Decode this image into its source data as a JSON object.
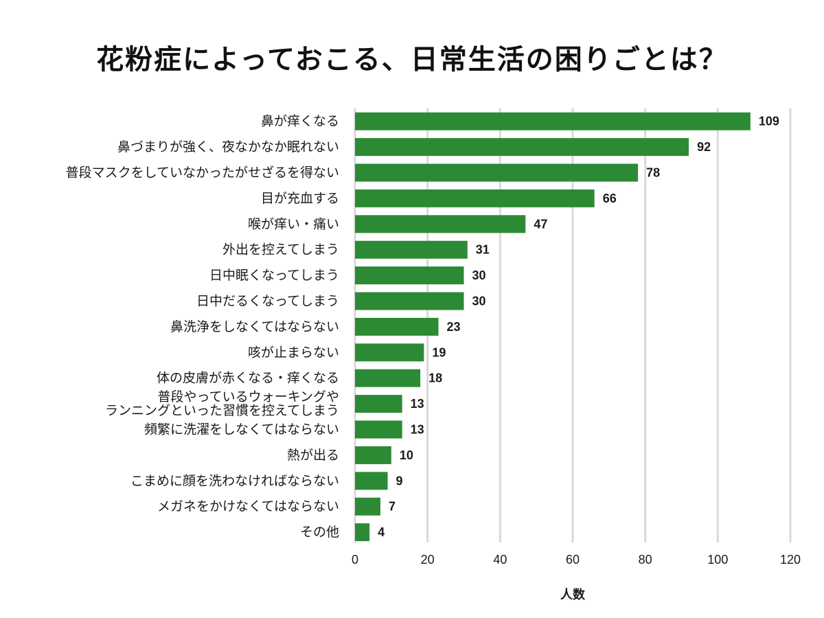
{
  "chart_data": {
    "type": "bar",
    "orientation": "horizontal",
    "title": "花粉症によっておこる、日常生活の困りごとは？",
    "xlabel": "人数",
    "ylabel": "",
    "xlim": [
      0,
      120
    ],
    "xticks": [
      0,
      20,
      40,
      60,
      80,
      100,
      120
    ],
    "grid": true,
    "bar_color": "#2d8a34",
    "categories": [
      "鼻が痒くなる",
      "鼻づまりが強く、夜なかなか眠れない",
      "普段マスクをしていなかったがせざるを得ない",
      "目が充血する",
      "喉が痒い・痛い",
      "外出を控えてしまう",
      "日中眠くなってしまう",
      "日中だるくなってしまう",
      "鼻洗浄をしなくてはならない",
      "咳が止まらない",
      "体の皮膚が赤くなる・痒くなる",
      "普段やっているウォーキングや\nランニングといった習慣を控えてしまう",
      "頻繁に洗濯をしなくてはならない",
      "熱が出る",
      "こまめに顔を洗わなければならない",
      "メガネをかけなくてはならない",
      "その他"
    ],
    "values": [
      109,
      92,
      78,
      66,
      47,
      31,
      30,
      30,
      23,
      19,
      18,
      13,
      13,
      10,
      9,
      7,
      4
    ]
  }
}
